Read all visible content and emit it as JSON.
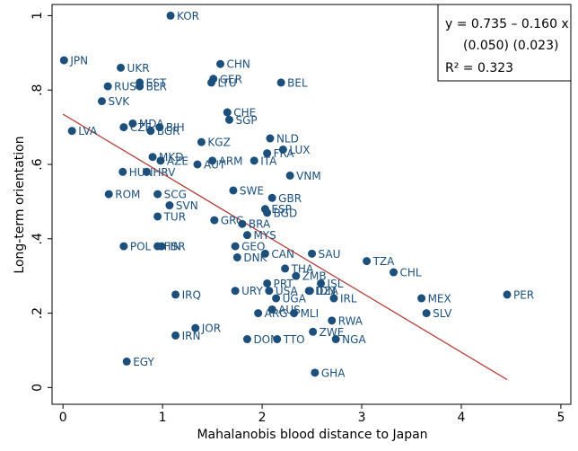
{
  "chart_data": {
    "type": "scatter",
    "x_label": "Mahalanobis blood distance to Japan",
    "y_label": "Long-term orientation",
    "xlim": [
      -0.11,
      5.1
    ],
    "ylim": [
      -0.045,
      1.03
    ],
    "xticks": [
      0,
      1,
      2,
      3,
      4,
      5
    ],
    "yticks": [
      0,
      {
        "value": 0.2,
        "label": ".2"
      },
      {
        "value": 0.4,
        "label": ".4"
      },
      {
        "value": 0.6,
        "label": ".6"
      },
      {
        "value": 0.8,
        "label": ".8"
      },
      1
    ],
    "color": "#1c4f7c",
    "fit_color": "#b5403a",
    "fit": {
      "intercept": 0.735,
      "slope": -0.16,
      "xrange": [
        0,
        4.46
      ]
    },
    "annotation": [
      "y = 0.735 – 0.160 x",
      "(0.050)   (0.023)",
      "R² = 0.323"
    ],
    "point_labels": [
      "KOR",
      "JPN",
      "UKR",
      "CHN",
      "GER",
      "LTU",
      "BEL",
      "EST",
      "RUS",
      "BLR",
      "SVK",
      "CHE",
      "SGP",
      "MDA",
      "CZE",
      "BIH",
      "BGR",
      "LVA",
      "NLD",
      "KGZ",
      "LUX",
      "FRA",
      "MKD",
      "ITA",
      "ARM",
      "AZE",
      "AUT",
      "VNM",
      "HUN",
      "HRV",
      "SWE",
      "ROM",
      "SCG",
      "GBR",
      "ESP",
      "BGD",
      "SVN",
      "TUR",
      "GRC",
      "BRA",
      "MYS",
      "POL",
      "FIN",
      "ISR",
      "GEO",
      "SAU",
      "DNK",
      "CAN",
      "TZA",
      "CHL",
      "THA",
      "ZMB",
      "IRQ",
      "ISL",
      "URY",
      "USA",
      "PRT",
      "IDN",
      "DZA",
      "IRL",
      "MEX",
      "PER",
      "SLV",
      "UGA",
      "AUS",
      "ARG",
      "MLI",
      "RWA",
      "JOR",
      "IRN",
      "DOM",
      "TTO",
      "ZWE",
      "NGA",
      "EGY",
      "GHA"
    ],
    "x": [
      1.08,
      0.01,
      0.58,
      1.58,
      1.51,
      1.49,
      2.19,
      0.77,
      0.45,
      0.77,
      0.39,
      1.65,
      1.67,
      0.7,
      0.61,
      0.97,
      0.88,
      0.09,
      2.08,
      1.39,
      2.21,
      2.05,
      0.9,
      1.92,
      1.5,
      0.98,
      1.35,
      2.28,
      0.6,
      0.84,
      1.71,
      0.46,
      0.95,
      2.1,
      2.03,
      2.05,
      1.07,
      0.95,
      1.52,
      1.8,
      1.85,
      0.61,
      0.95,
      0.99,
      1.73,
      2.5,
      1.75,
      2.03,
      3.05,
      3.32,
      2.23,
      2.34,
      1.13,
      2.59,
      1.73,
      2.07,
      2.05,
      2.48,
      2.47,
      2.72,
      3.6,
      4.46,
      3.65,
      2.14,
      2.1,
      1.96,
      2.32,
      2.7,
      1.33,
      1.13,
      1.85,
      2.15,
      2.51,
      2.74,
      0.64,
      2.53
    ],
    "y": [
      1.0,
      0.88,
      0.86,
      0.87,
      0.83,
      0.82,
      0.82,
      0.82,
      0.81,
      0.81,
      0.77,
      0.74,
      0.72,
      0.71,
      0.7,
      0.7,
      0.69,
      0.69,
      0.67,
      0.66,
      0.64,
      0.63,
      0.62,
      0.61,
      0.61,
      0.61,
      0.6,
      0.57,
      0.58,
      0.58,
      0.53,
      0.52,
      0.52,
      0.51,
      0.48,
      0.47,
      0.49,
      0.46,
      0.45,
      0.44,
      0.41,
      0.38,
      0.38,
      0.38,
      0.38,
      0.36,
      0.35,
      0.36,
      0.34,
      0.31,
      0.32,
      0.3,
      0.25,
      0.28,
      0.26,
      0.26,
      0.28,
      0.26,
      0.26,
      0.24,
      0.24,
      0.25,
      0.2,
      0.24,
      0.21,
      0.2,
      0.2,
      0.18,
      0.16,
      0.14,
      0.13,
      0.13,
      0.15,
      0.13,
      0.07,
      0.04
    ]
  }
}
